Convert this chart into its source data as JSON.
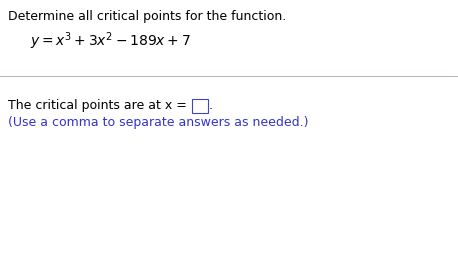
{
  "bg_color": "#ffffff",
  "title_text": "Determine all critical points for the function.",
  "title_color": "#000000",
  "title_fontsize": 9.0,
  "equation_color": "#000000",
  "equation_fontsize": 10.0,
  "line_color": "#c0b0b0",
  "answer_prefix": "The critical points are at x = ",
  "answer_period": ".",
  "answer_color": "#000000",
  "answer_fontsize": 9.0,
  "hint_text": "(Use a comma to separate answers as needed.)",
  "hint_color": "#3333cc",
  "hint_fontsize": 9.0
}
